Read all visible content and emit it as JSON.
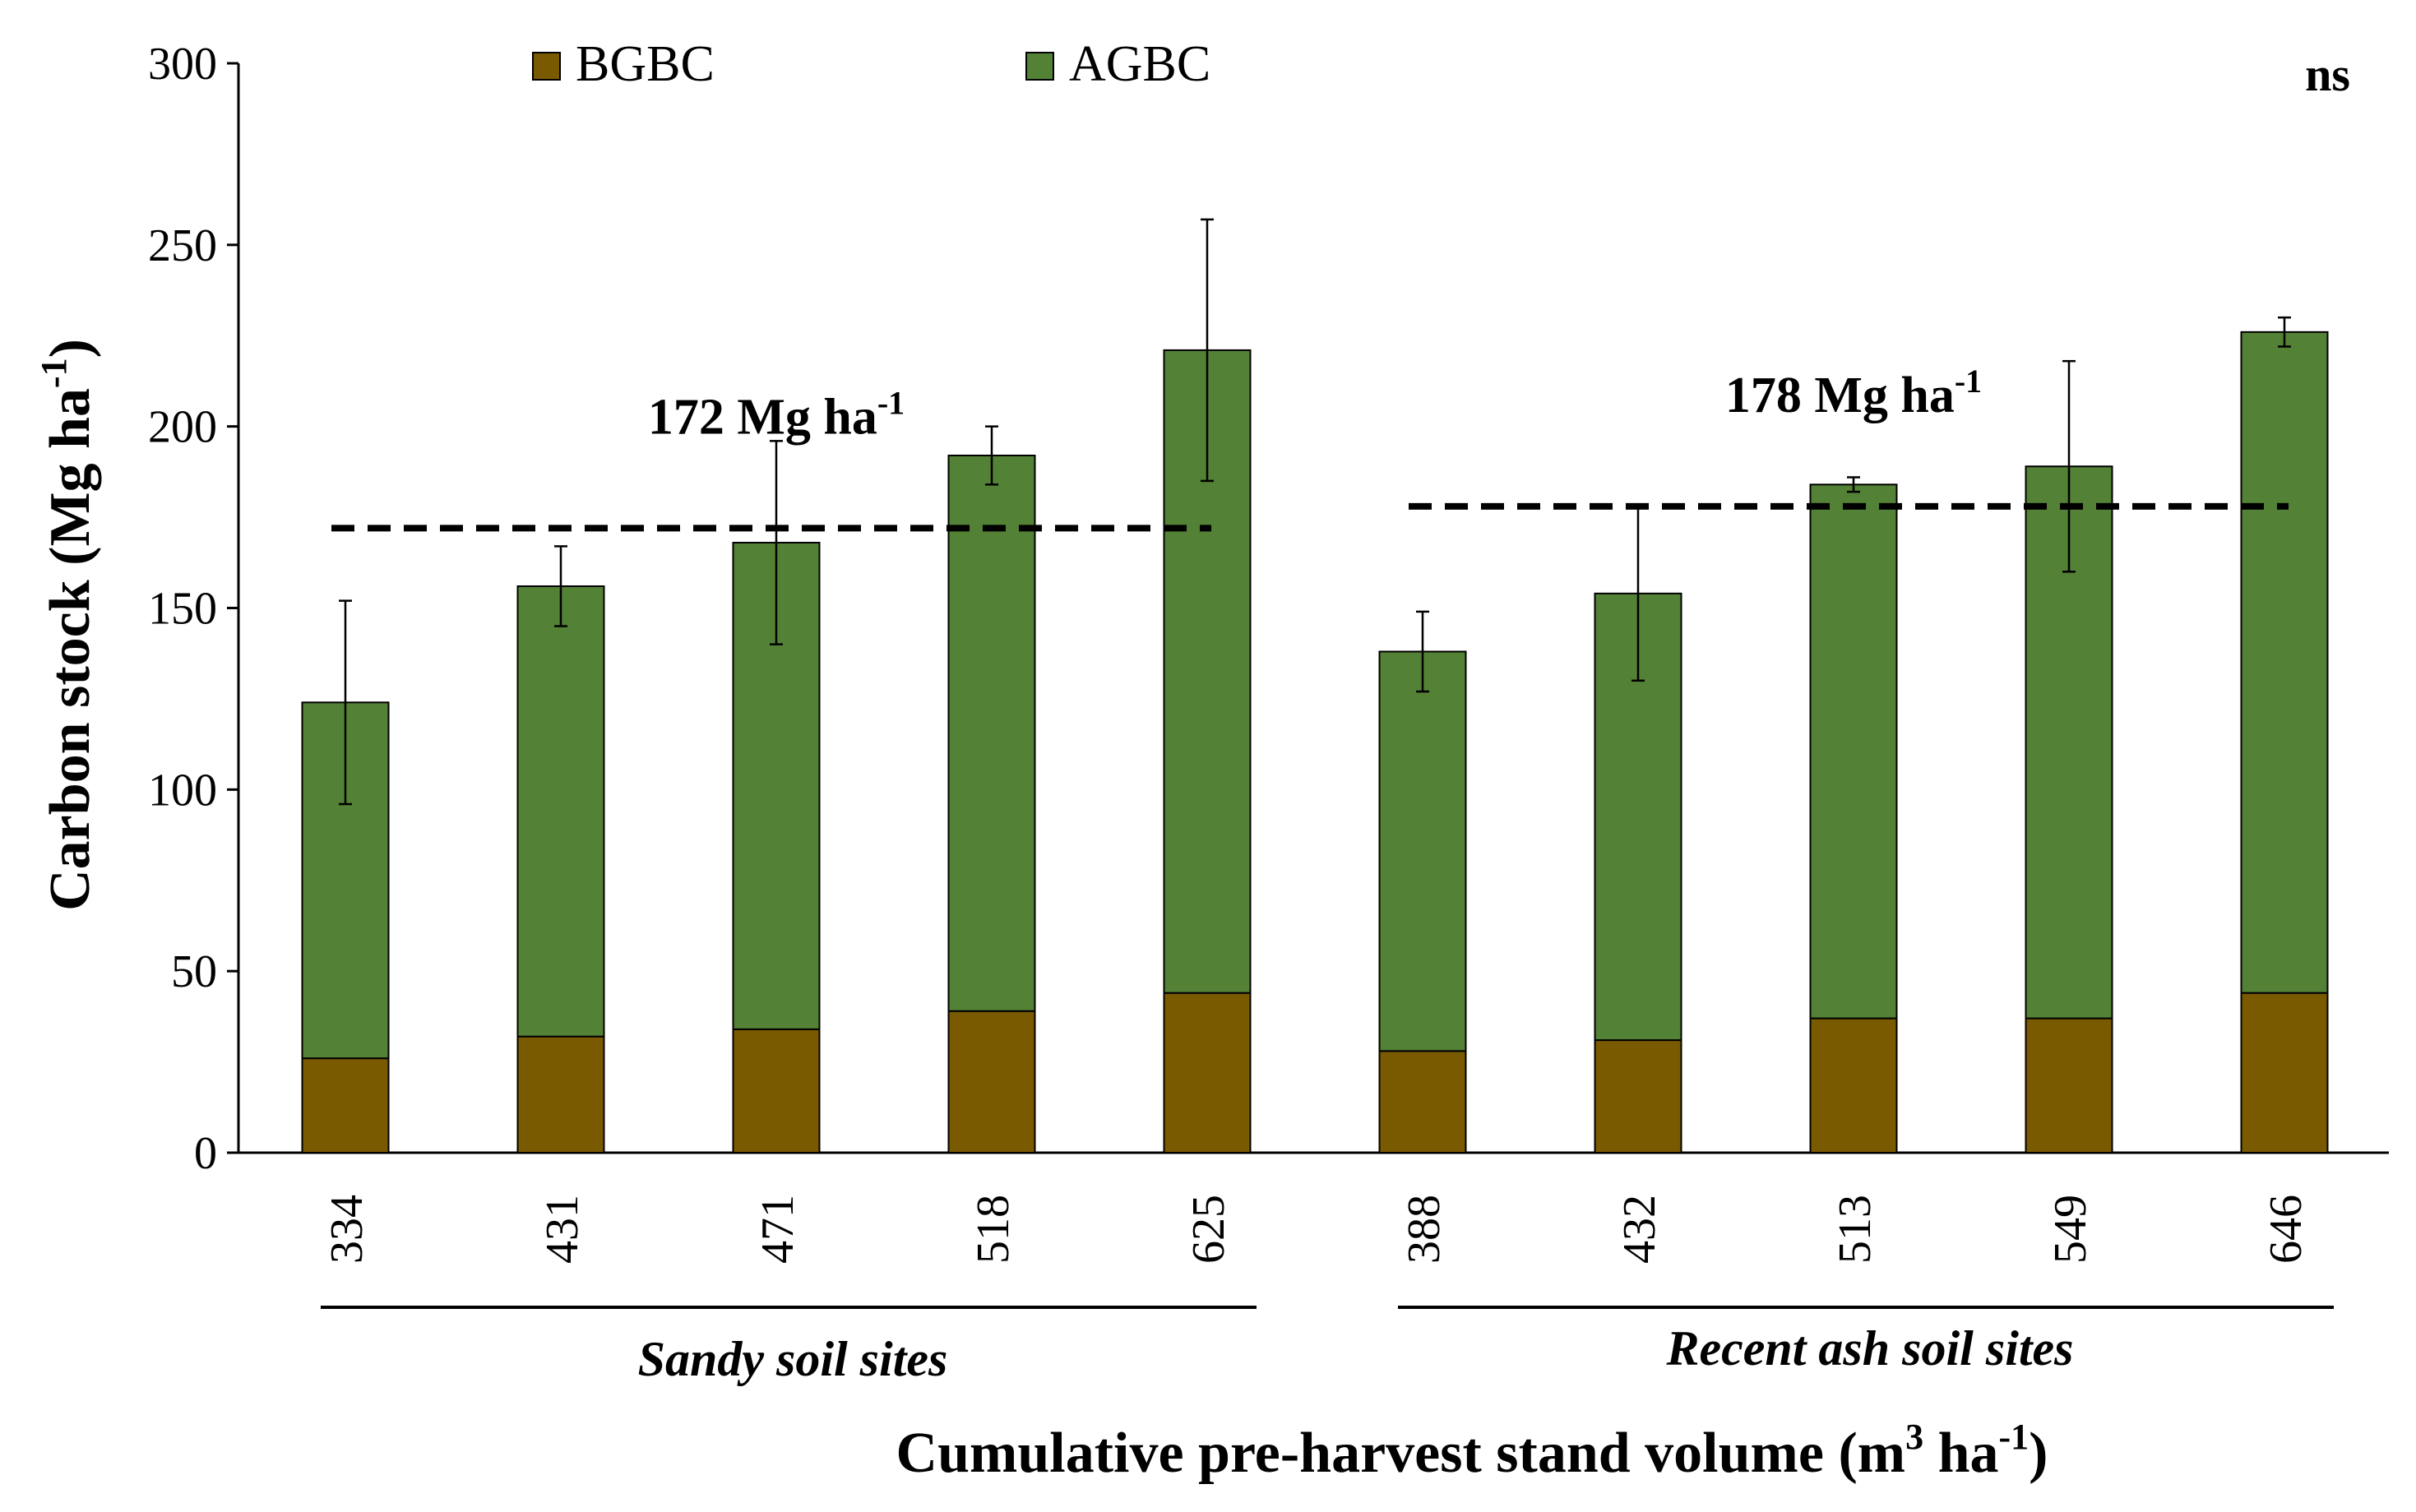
{
  "chart_data": {
    "type": "bar",
    "stacked": true,
    "categories": [
      "334",
      "431",
      "471",
      "518",
      "625",
      "388",
      "432",
      "513",
      "549",
      "646"
    ],
    "series": [
      {
        "name": "BGBC",
        "color": "#7a5a00",
        "values": [
          26,
          32,
          34,
          39,
          44,
          28,
          31,
          37,
          37,
          44
        ]
      },
      {
        "name": "AGBC",
        "color": "#538135",
        "values": [
          98,
          124,
          134,
          153,
          177,
          110,
          123,
          147,
          152,
          182
        ]
      }
    ],
    "totals": [
      124,
      156,
      168,
      192,
      221,
      138,
      154,
      184,
      189,
      226
    ],
    "error_bars": [
      28,
      11,
      28,
      8,
      36,
      11,
      24,
      2,
      29,
      4
    ],
    "ylabel_main": "Carbon stock (Mg ha",
    "ylabel_sup": "-1",
    "ylabel_close": ")",
    "xlabel_main": "Cumulative pre-harvest stand volume (m",
    "xlabel_sup1": "3",
    "xlabel_mid": " ha",
    "xlabel_sup2": "-1",
    "xlabel_close": ")",
    "ylim": [
      0,
      300
    ],
    "yticks": [
      0,
      50,
      100,
      150,
      200,
      250,
      300
    ],
    "significance": "ns",
    "groups": [
      {
        "label": "Sandy soil sites",
        "category_range": [
          0,
          4
        ],
        "mean_value": 172,
        "mean_text": "172 Mg ha",
        "mean_sup": "-1"
      },
      {
        "label": "Recent ash soil sites",
        "category_range": [
          5,
          9
        ],
        "mean_value": 178,
        "mean_text": "178 Mg ha",
        "mean_sup": "-1"
      }
    ]
  }
}
